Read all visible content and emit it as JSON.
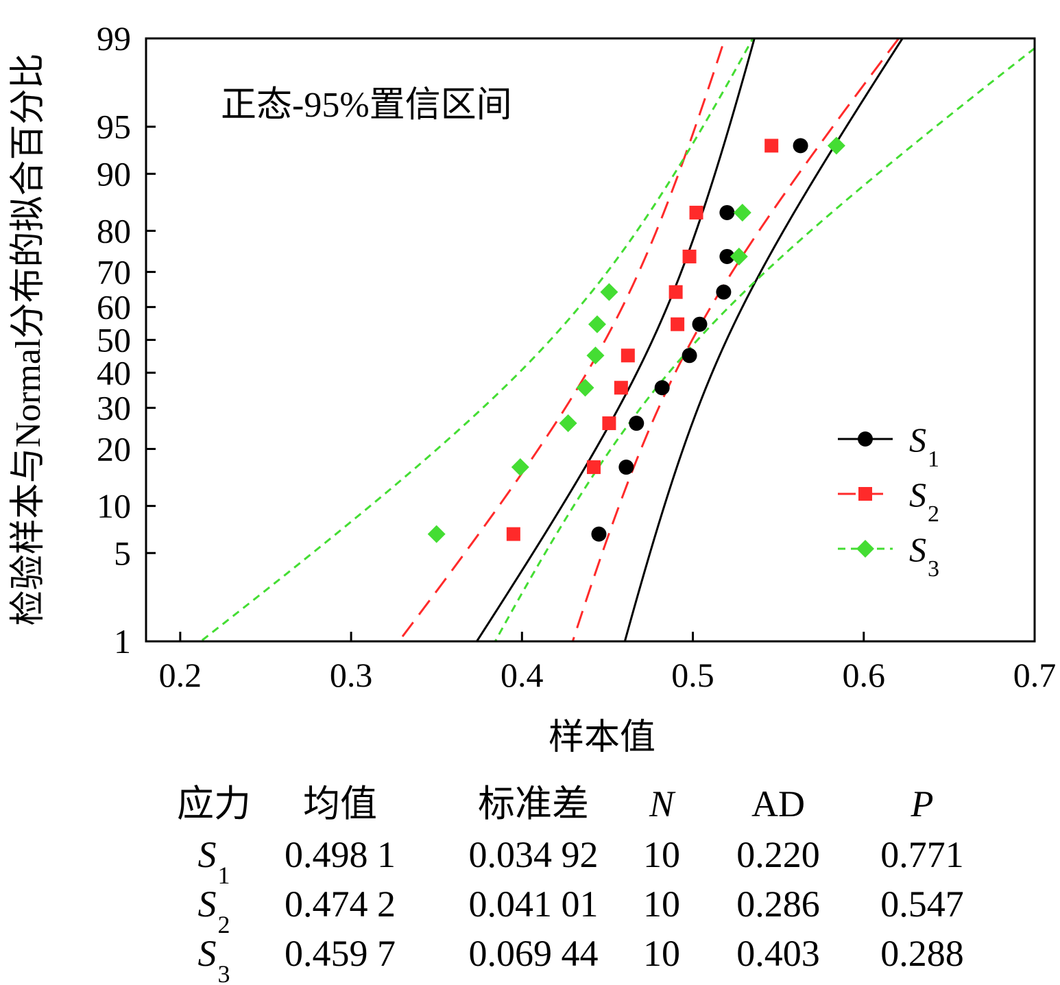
{
  "chart_data": {
    "type": "scatter",
    "title": "",
    "annotation": "正态-95%置信区间",
    "xlabel": "样本值",
    "ylabel": "检验样本与Normal分布的拟合百分比",
    "xlim": [
      0.18,
      0.7
    ],
    "ylim": [
      1,
      99
    ],
    "y_scale": "normal-probability",
    "x_ticks": [
      0.2,
      0.3,
      0.4,
      0.5,
      0.6,
      0.7
    ],
    "x_tick_labels": [
      "0.2",
      "0.3",
      "0.4",
      "0.5",
      "0.6",
      "0.7"
    ],
    "y_ticks": [
      1,
      5,
      10,
      20,
      30,
      40,
      50,
      60,
      70,
      80,
      90,
      95,
      99
    ],
    "y_tick_labels": [
      "1",
      "5",
      "10",
      "20",
      "30",
      "40",
      "50",
      "60",
      "70",
      "80",
      "90",
      "95",
      "99"
    ],
    "y_percentiles": [
      6.7,
      16.3,
      26.0,
      35.6,
      45.2,
      54.8,
      64.4,
      74.0,
      83.7,
      93.3
    ],
    "legend_position": "right",
    "series": [
      {
        "name": "S",
        "sub": "1",
        "color": "#000000",
        "marker": "circle",
        "line": "solid",
        "mean": 0.4981,
        "sd": 0.03492,
        "values": [
          0.445,
          0.461,
          0.467,
          0.482,
          0.498,
          0.504,
          0.518,
          0.52,
          0.52,
          0.563
        ]
      },
      {
        "name": "S",
        "sub": "2",
        "color": "#ff2a2a",
        "marker": "square",
        "line": "long-dash",
        "mean": 0.4742,
        "sd": 0.04101,
        "values": [
          0.395,
          0.442,
          0.451,
          0.458,
          0.462,
          0.491,
          0.49,
          0.498,
          0.502,
          0.546
        ]
      },
      {
        "name": "S",
        "sub": "3",
        "color": "#44dd33",
        "marker": "diamond",
        "line": "short-dash",
        "mean": 0.4597,
        "sd": 0.06944,
        "values": [
          0.35,
          0.399,
          0.427,
          0.437,
          0.443,
          0.444,
          0.451,
          0.527,
          0.529,
          0.584
        ]
      }
    ]
  },
  "stats_table": {
    "headers": [
      "应力",
      "均值",
      "标准差",
      "N",
      "AD",
      "P"
    ],
    "rows": [
      {
        "name": "S",
        "sub": "1",
        "mean": "0.498 1",
        "sd": "0.034 92",
        "n": "10",
        "ad": "0.220",
        "p": "0.771"
      },
      {
        "name": "S",
        "sub": "2",
        "mean": "0.474 2",
        "sd": "0.041 01",
        "n": "10",
        "ad": "0.286",
        "p": "0.547"
      },
      {
        "name": "S",
        "sub": "3",
        "mean": "0.459 7",
        "sd": "0.069 44",
        "n": "10",
        "ad": "0.403",
        "p": "0.288"
      }
    ]
  }
}
